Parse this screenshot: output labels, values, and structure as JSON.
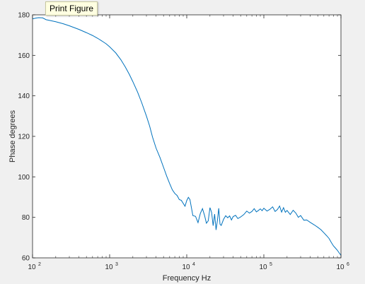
{
  "window": {
    "tooltip": "Print Figure"
  },
  "chart_data": {
    "type": "line",
    "xscale": "log",
    "xlabel": "Frequency Hz",
    "ylabel": "Phase degrees",
    "xlim": [
      100,
      1000000
    ],
    "ylim": [
      60,
      180
    ],
    "yticks": [
      60,
      80,
      100,
      120,
      140,
      160,
      180
    ],
    "xticks": [
      100,
      1000,
      10000,
      100000,
      1000000
    ],
    "xtick_labels": [
      {
        "base": "10",
        "exp": "2"
      },
      {
        "base": "10",
        "exp": "3"
      },
      {
        "base": "10",
        "exp": "4"
      },
      {
        "base": "10",
        "exp": "5"
      },
      {
        "base": "10",
        "exp": "6"
      }
    ],
    "grid": false,
    "line_color": "#0072bd",
    "series": [
      {
        "x": [
          100,
          110,
          120,
          135,
          150,
          160,
          200,
          250,
          300,
          400,
          500,
          600,
          700,
          800,
          900,
          1000,
          1200,
          1400,
          1600,
          1800,
          2000,
          2300,
          2600,
          3000,
          3300,
          3600,
          4000,
          4500,
          5000,
          5500,
          6000,
          6500,
          7000,
          7500,
          8000,
          8500,
          9000,
          9500,
          10000,
          10500,
          11000,
          12000,
          13000,
          14000,
          15000,
          16000,
          17000,
          18000,
          19000,
          20000,
          21000,
          22000,
          23000,
          24000,
          25000,
          26000,
          27000,
          28000,
          30000,
          32000,
          34000,
          36000,
          38000,
          40000,
          43000,
          46000,
          50000,
          55000,
          60000,
          65000,
          70000,
          75000,
          80000,
          85000,
          90000,
          95000,
          100000,
          110000,
          120000,
          130000,
          140000,
          150000,
          160000,
          170000,
          180000,
          190000,
          200000,
          220000,
          240000,
          260000,
          280000,
          300000,
          330000,
          360000,
          400000,
          450000,
          500000,
          550000,
          600000,
          650000,
          700000,
          750000,
          800000,
          850000,
          900000,
          950000,
          1000000
        ],
        "y": [
          178,
          178.4,
          178.6,
          178.5,
          177.6,
          177.4,
          176.6,
          175.6,
          174.6,
          172.8,
          171.2,
          169.8,
          168.4,
          167.0,
          165.7,
          164.2,
          161.2,
          157.8,
          154.2,
          150.6,
          147.0,
          141.9,
          136.7,
          130.0,
          125.1,
          119.6,
          114.2,
          109.5,
          104.7,
          100.3,
          96.7,
          93.6,
          91.8,
          90.8,
          88.8,
          88.4,
          86.9,
          85.5,
          88.3,
          89.9,
          88.8,
          80.9,
          80.5,
          77.4,
          81.9,
          84.3,
          81.0,
          77.1,
          78.3,
          84.8,
          82.5,
          75.9,
          81.6,
          73.8,
          78.5,
          84.5,
          76.6,
          76.0,
          79.0,
          80.8,
          79.8,
          80.7,
          78.7,
          80.4,
          81.0,
          79.4,
          80.2,
          81.4,
          83.1,
          82.1,
          82.9,
          84.3,
          82.7,
          83.4,
          84.2,
          83.3,
          84.5,
          83.1,
          84.0,
          85.2,
          82.9,
          83.9,
          85.6,
          82.6,
          84.8,
          82.5,
          83.4,
          81.4,
          83.5,
          82.1,
          80.0,
          80.9,
          78.6,
          78.7,
          77.5,
          76.3,
          75.1,
          73.9,
          72.4,
          71.0,
          69.6,
          67.6,
          65.9,
          64.8,
          63.7,
          62.4,
          61.3
        ]
      }
    ]
  }
}
